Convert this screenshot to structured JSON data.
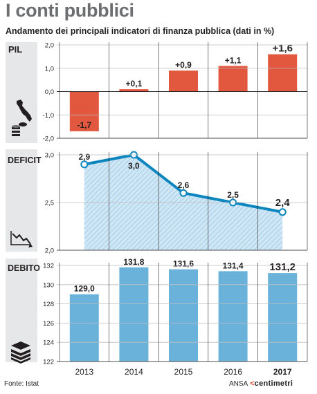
{
  "title": "I conti pubblici",
  "subtitle": "Andamento dei principali indicatori di finanza pubblica (dati in %)",
  "source": "Fonte: Istat",
  "brand": {
    "prefix": "ANSA",
    "arrow": "<",
    "name": "centimetri"
  },
  "colors": {
    "pil_bar": "#e2583f",
    "deficit_line": "#0d86bf",
    "deficit_fill": "#a9d4ee",
    "debito_bar": "#6bb2da",
    "label_panel": "#e6e7e8",
    "text": "#231f20"
  },
  "years": [
    "2013",
    "2014",
    "2015",
    "2016",
    "2017"
  ],
  "chart_data": [
    {
      "type": "bar",
      "panel": "PIL",
      "categories": [
        "2013",
        "2014",
        "2015",
        "2016",
        "2017"
      ],
      "values": [
        -1.7,
        0.1,
        0.9,
        1.1,
        1.6
      ],
      "data_labels": [
        "-1,7",
        "+0,1",
        "+0,9",
        "+1,1",
        "+1,6"
      ],
      "ylim": [
        -2.0,
        2.0
      ],
      "yticks": [
        2.0,
        1.0,
        0.0,
        -1.0,
        -2.0
      ],
      "ytick_labels": [
        "2,0",
        "1,0",
        "0,0",
        "-1,0",
        "-2,0"
      ],
      "icon": "italy-coins-icon"
    },
    {
      "type": "area",
      "panel": "DEFICIT",
      "categories": [
        "2013",
        "2014",
        "2015",
        "2016",
        "2017"
      ],
      "values": [
        2.9,
        3.0,
        2.6,
        2.5,
        2.4
      ],
      "data_labels": [
        "2,9",
        "3,0",
        "2,6",
        "2,5",
        "2,4"
      ],
      "ylim": [
        2.0,
        3.0
      ],
      "yticks": [
        3.0,
        2.5,
        2.0
      ],
      "ytick_labels": [
        "3,0",
        "2,5",
        "2,0"
      ],
      "icon": "declining-chart-icon"
    },
    {
      "type": "bar",
      "panel": "DEBITO",
      "categories": [
        "2013",
        "2014",
        "2015",
        "2016",
        "2017"
      ],
      "values": [
        129.0,
        131.8,
        131.6,
        131.4,
        131.2
      ],
      "data_labels": [
        "129,0",
        "131,8",
        "131,6",
        "131,4",
        "131,2"
      ],
      "ylim": [
        122,
        132
      ],
      "yticks": [
        132,
        130,
        128,
        126,
        124,
        122
      ],
      "ytick_labels": [
        "132",
        "130",
        "128",
        "126",
        "124",
        "122"
      ],
      "icon": "money-stack-icon"
    }
  ]
}
